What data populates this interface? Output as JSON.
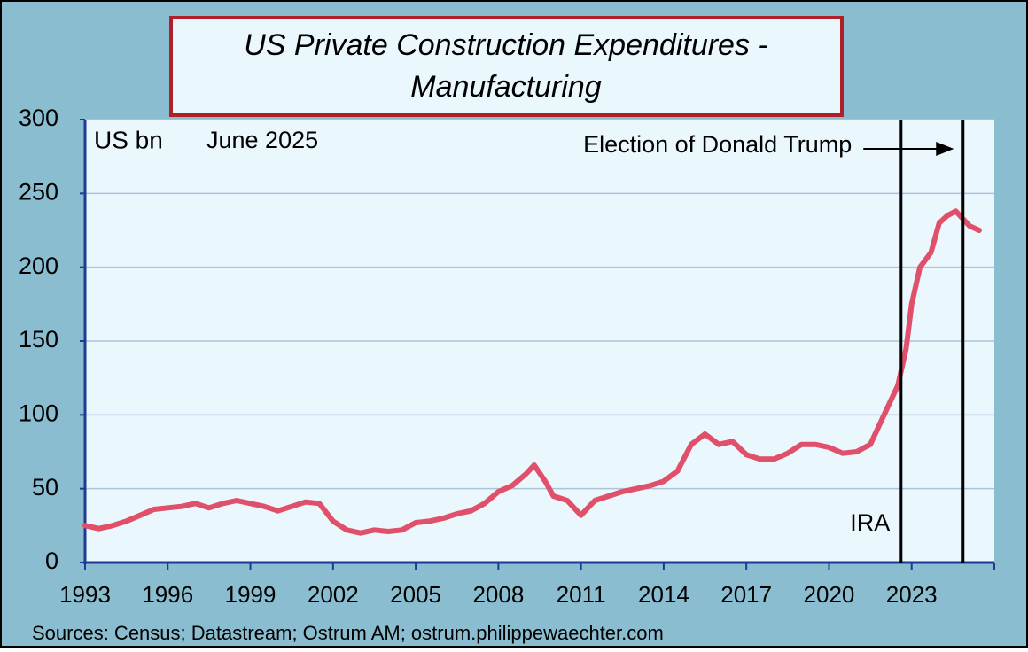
{
  "chart_data": {
    "type": "line",
    "title": "US Private Construction Expenditures -",
    "title_line2": "Manufacturing",
    "unit": "US bn",
    "date_label": "June 2025",
    "source": "Sources: Census; Datastream; Ostrum AM; ostrum.philippewaechter.com",
    "color": "#e0506a",
    "grid": true,
    "xlim": [
      1993,
      2026
    ],
    "xticks": [
      1993,
      1996,
      1999,
      2002,
      2005,
      2008,
      2011,
      2014,
      2017,
      2020,
      2023
    ],
    "ylim": [
      0,
      300
    ],
    "yticks": [
      0,
      50,
      100,
      150,
      200,
      250,
      300
    ],
    "events": [
      {
        "label": "IRA",
        "x": 2022.6
      },
      {
        "label": "Election of Donald Trump",
        "x": 2024.85
      }
    ],
    "x": [
      1993.0,
      1993.5,
      1994.0,
      1994.5,
      1995.0,
      1995.5,
      1996.0,
      1996.5,
      1997.0,
      1997.5,
      1998.0,
      1998.5,
      1999.0,
      1999.5,
      2000.0,
      2000.5,
      2001.0,
      2001.5,
      2002.0,
      2002.5,
      2003.0,
      2003.5,
      2004.0,
      2004.5,
      2005.0,
      2005.5,
      2006.0,
      2006.5,
      2007.0,
      2007.5,
      2008.0,
      2008.5,
      2009.0,
      2009.3,
      2009.7,
      2010.0,
      2010.5,
      2011.0,
      2011.5,
      2012.0,
      2012.5,
      2013.0,
      2013.5,
      2014.0,
      2014.5,
      2015.0,
      2015.5,
      2016.0,
      2016.5,
      2017.0,
      2017.5,
      2018.0,
      2018.5,
      2019.0,
      2019.5,
      2020.0,
      2020.5,
      2021.0,
      2021.5,
      2022.0,
      2022.5,
      2022.8,
      2023.0,
      2023.3,
      2023.7,
      2024.0,
      2024.3,
      2024.6,
      2024.9,
      2025.1,
      2025.45
    ],
    "values": [
      25,
      23,
      25,
      28,
      32,
      36,
      37,
      38,
      40,
      37,
      40,
      42,
      40,
      38,
      35,
      38,
      41,
      40,
      28,
      22,
      20,
      22,
      21,
      22,
      27,
      28,
      30,
      33,
      35,
      40,
      48,
      52,
      60,
      66,
      55,
      45,
      42,
      32,
      42,
      45,
      48,
      50,
      52,
      55,
      62,
      80,
      87,
      80,
      82,
      73,
      70,
      70,
      74,
      80,
      80,
      78,
      74,
      75,
      80,
      100,
      120,
      145,
      175,
      200,
      210,
      230,
      235,
      238,
      232,
      228,
      225
    ]
  }
}
